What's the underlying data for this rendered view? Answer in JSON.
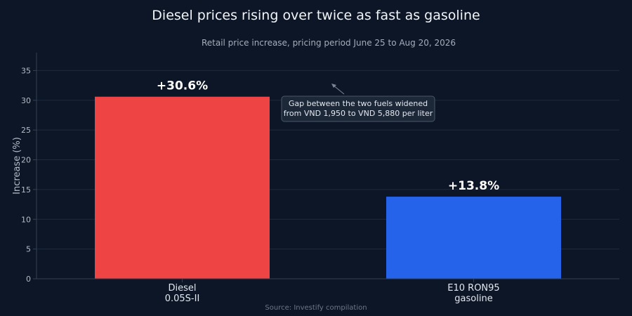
{
  "chart_data": {
    "type": "bar",
    "title": "Diesel prices rising over twice as fast as gasoline",
    "subtitle": "Retail price increase, pricing period June 25 to Aug 20, 2026",
    "xlabel": "",
    "ylabel": "Increase (%)",
    "ylim": [
      0,
      38
    ],
    "yticks": [
      0,
      5,
      10,
      15,
      20,
      25,
      30,
      35
    ],
    "grid": true,
    "categories": [
      [
        "Diesel",
        "0.05S-II"
      ],
      [
        "E10 RON95",
        "gasoline"
      ]
    ],
    "values": [
      30.6,
      13.8
    ],
    "data_labels": [
      "+30.6%",
      "+13.8%"
    ],
    "colors": [
      "#ef4444",
      "#2563eb"
    ],
    "annotation": {
      "lines": [
        "Gap between the two fuels widened",
        "from VND 1,950 to VND 5,880 per liter"
      ]
    },
    "source": "Source: Investify compilation"
  },
  "colors": {
    "background": "#0d1626",
    "grid": "#1e2a3d",
    "axis": "#334155",
    "tick_text": "#b4bcc8",
    "title": "#f1f5f9",
    "subtitle": "#a3adbb",
    "source": "#6b7789"
  }
}
